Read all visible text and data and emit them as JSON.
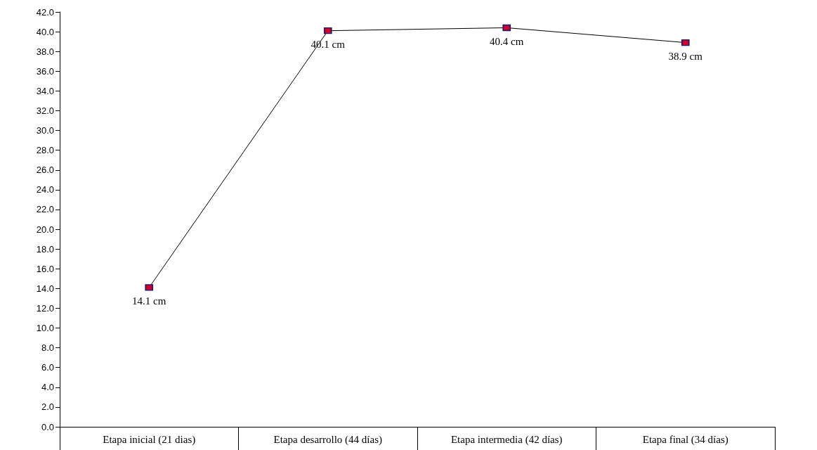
{
  "chart_data": {
    "type": "line",
    "categories": [
      "Etapa inicial (21 dias)",
      "Etapa desarrollo (44 días)",
      "Etapa intermedia (42 días)",
      "Etapa final (34 días)"
    ],
    "series": [
      {
        "color": "#000000",
        "values": [
          14.1,
          40.1,
          40.4,
          38.9
        ],
        "value_labels": [
          "14.1 cm",
          "40.1 cm",
          "40.4 cm",
          "38.9 cm"
        ]
      }
    ],
    "ylim": [
      0,
      42
    ],
    "yticks": [
      {
        "value": 0,
        "label": "0.0"
      },
      {
        "value": 2,
        "label": "2.0"
      },
      {
        "value": 4,
        "label": "4.0"
      },
      {
        "value": 6,
        "label": "6.0"
      },
      {
        "value": 8,
        "label": "8.0"
      },
      {
        "value": 10,
        "label": "10.0"
      },
      {
        "value": 12,
        "label": "12.0"
      },
      {
        "value": 14,
        "label": "14.0"
      },
      {
        "value": 16,
        "label": "16.0"
      },
      {
        "value": 18,
        "label": "18.0"
      },
      {
        "value": 20,
        "label": "20.0"
      },
      {
        "value": 22,
        "label": "22.0"
      },
      {
        "value": 24,
        "label": "24.0"
      },
      {
        "value": 26,
        "label": "26.0"
      },
      {
        "value": 28,
        "label": "28.0"
      },
      {
        "value": 30,
        "label": "30.0"
      },
      {
        "value": 32,
        "label": "32.0"
      },
      {
        "value": 34,
        "label": "34.0"
      },
      {
        "value": 36,
        "label": "36.0"
      },
      {
        "value": 38,
        "label": "38.0"
      },
      {
        "value": 40,
        "label": "40.0"
      },
      {
        "value": 42,
        "label": "42.0"
      }
    ],
    "marker": "square",
    "grid": false
  }
}
